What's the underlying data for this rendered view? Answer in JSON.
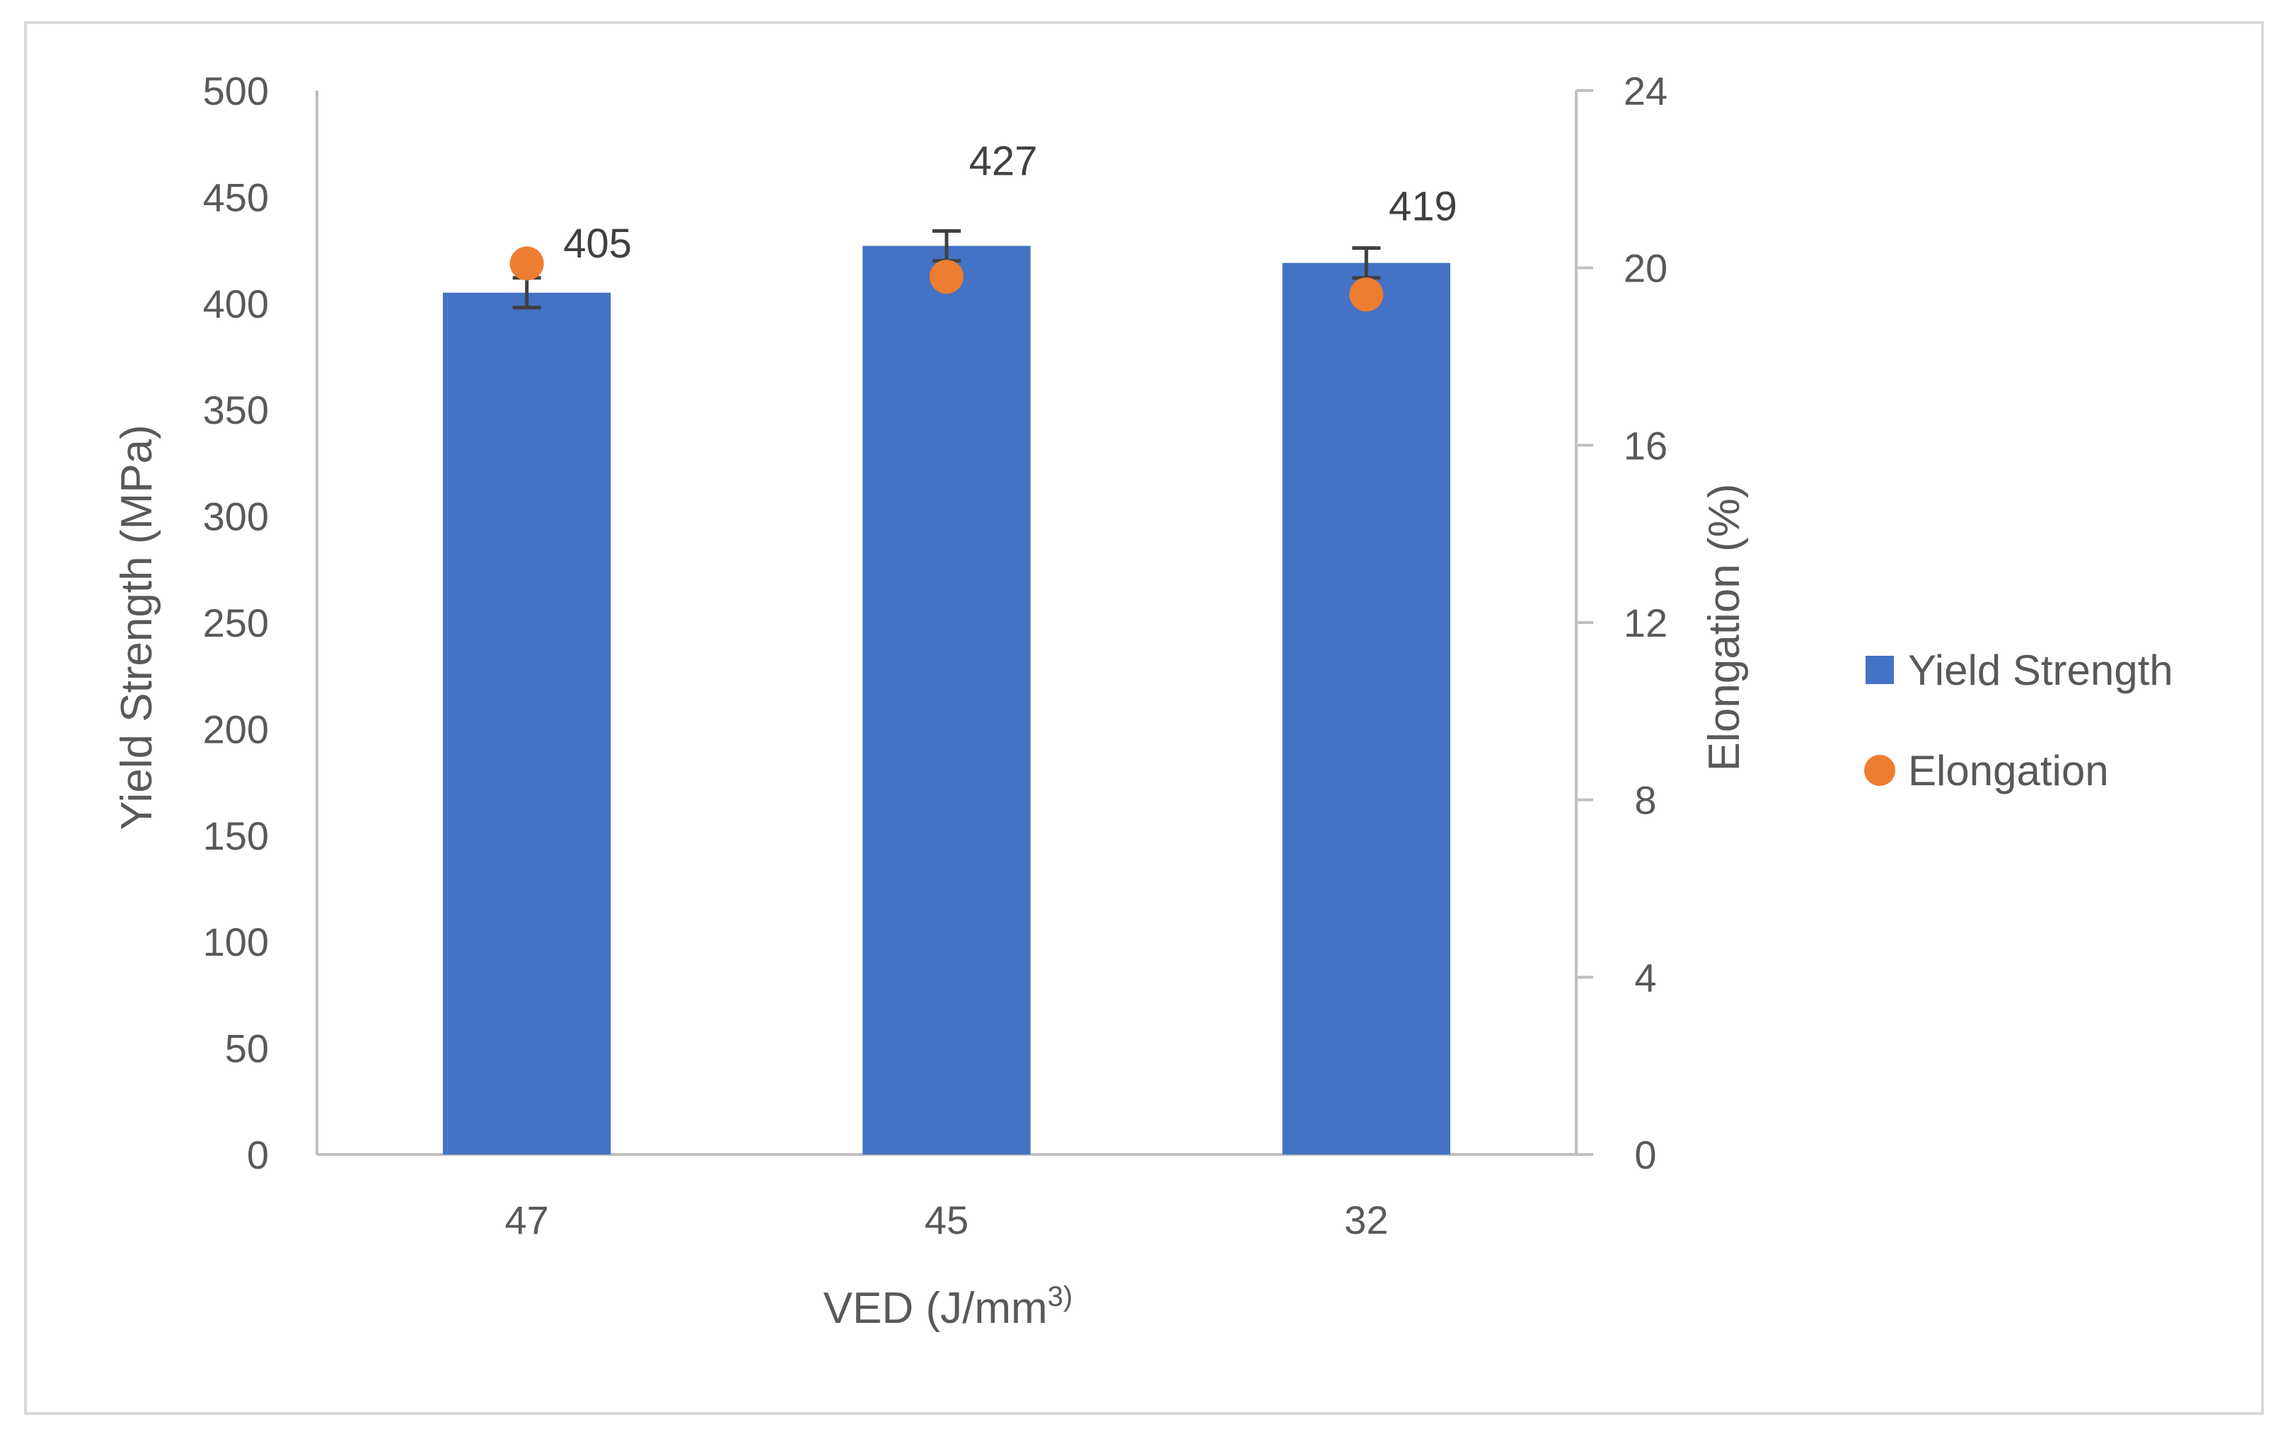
{
  "chart_data": {
    "type": "bar",
    "title": "",
    "categories": [
      "47",
      "45",
      "32"
    ],
    "xlabel": "VED (J/mm",
    "xlabel_superscript": "3)",
    "ylabel": "Yield Strength (MPa)",
    "y2label": "Elongation (%)",
    "ylim": [
      0,
      500
    ],
    "y2lim": [
      0,
      24
    ],
    "yticks": [
      "0",
      "50",
      "100",
      "150",
      "200",
      "250",
      "300",
      "350",
      "400",
      "450",
      "500"
    ],
    "y2ticks": [
      "0",
      "4",
      "8",
      "12",
      "16",
      "20",
      "24"
    ],
    "grid": false,
    "legend_position": "right",
    "series": [
      {
        "name": "Yield Strength",
        "kind": "bar",
        "axis": "left",
        "color": "#4472C4",
        "values": [
          405,
          427,
          419
        ],
        "error": [
          7,
          7,
          7
        ],
        "data_labels": [
          "405",
          "427",
          "419"
        ]
      },
      {
        "name": "Elongation",
        "kind": "scatter",
        "axis": "right",
        "color": "#ED7D31",
        "values": [
          20.1,
          19.8,
          19.4
        ]
      }
    ]
  }
}
